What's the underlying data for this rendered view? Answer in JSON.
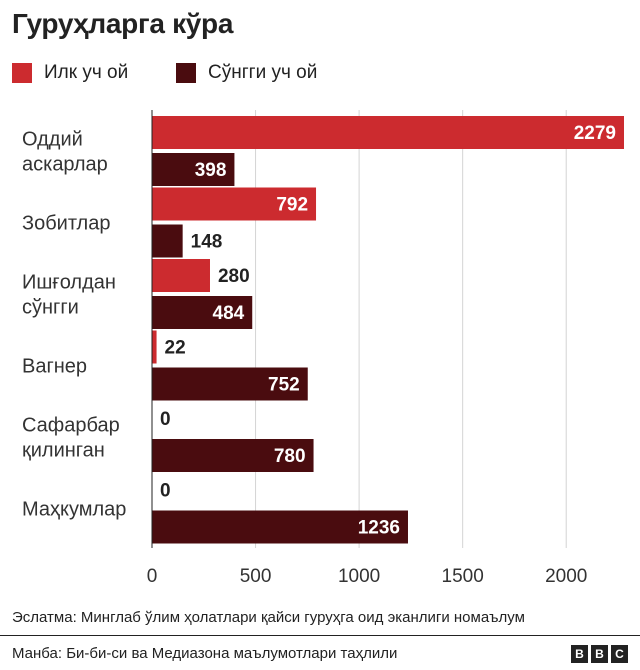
{
  "title": "Гуруҳларга кўра",
  "legend": [
    {
      "label": "Илк уч ой",
      "color": "#cc2b2f"
    },
    {
      "label": "Сўнгги уч ой",
      "color": "#4a0c0f"
    }
  ],
  "chart_data": {
    "type": "bar",
    "orientation": "horizontal",
    "categories": [
      [
        "Оддий",
        "аскарлар"
      ],
      [
        "Зобитлар"
      ],
      [
        "Ишғолдан",
        "сўнгги"
      ],
      [
        "Вагнер"
      ],
      [
        "Сафарбар",
        "қилинган"
      ],
      [
        "Маҳкумлар"
      ]
    ],
    "series": [
      {
        "name": "Илк уч ой",
        "color": "#cc2b2f",
        "values": [
          2279,
          792,
          280,
          22,
          0,
          0
        ]
      },
      {
        "name": "Сўнгги уч ой",
        "color": "#4a0c0f",
        "values": [
          398,
          148,
          484,
          752,
          780,
          1236
        ]
      }
    ],
    "xlim": [
      0,
      2279
    ],
    "xticks": [
      0,
      500,
      1000,
      1500,
      2000
    ],
    "grid": true,
    "legend_position": "top-left"
  },
  "note": "Эслатма: Минглаб ўлим ҳолатлари қайси гуруҳга оид эканлиги номаълум",
  "source": "Манба: Би-би-си ва Медиазона маълумотлари таҳлили",
  "logo": [
    "B",
    "B",
    "C"
  ]
}
